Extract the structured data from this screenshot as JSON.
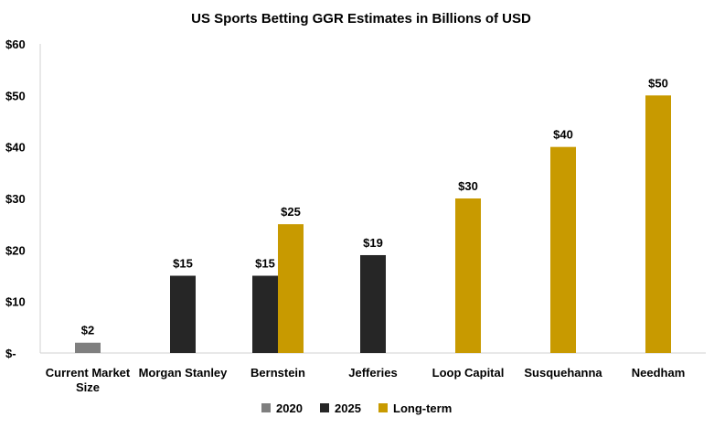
{
  "chart_data": {
    "type": "bar",
    "title": "US Sports Betting GGR Estimates in Billions of USD",
    "xlabel": "",
    "ylabel": "",
    "categories": [
      "Current Market Size",
      "Morgan Stanley",
      "Bernstein",
      "Jefferies",
      "Loop Capital",
      "Susquehanna",
      "Needham"
    ],
    "category_label_lines": [
      [
        "Current Market",
        "Size"
      ],
      [
        "Morgan Stanley"
      ],
      [
        "Bernstein"
      ],
      [
        "Jefferies"
      ],
      [
        "Loop Capital"
      ],
      [
        "Susquehanna"
      ],
      [
        "Needham"
      ]
    ],
    "series": [
      {
        "name": "2020",
        "color": "#7f7f7f",
        "values": [
          2,
          null,
          null,
          null,
          null,
          null,
          null
        ],
        "labels": [
          "$2",
          null,
          null,
          null,
          null,
          null,
          null
        ]
      },
      {
        "name": "2025",
        "color": "#262626",
        "values": [
          null,
          15,
          15,
          19,
          null,
          null,
          null
        ],
        "labels": [
          null,
          "$15",
          "$15",
          "$19",
          null,
          null,
          null
        ]
      },
      {
        "name": "Long-term",
        "color": "#c89a00",
        "values": [
          null,
          null,
          25,
          null,
          30,
          40,
          50
        ],
        "labels": [
          null,
          null,
          "$25",
          null,
          "$30",
          "$40",
          "$50"
        ]
      }
    ],
    "ylim": [
      0,
      60
    ],
    "yticks": [
      0,
      10,
      20,
      30,
      40,
      50,
      60
    ],
    "ytick_labels": [
      "$-",
      "$10",
      "$20",
      "$30",
      "$40",
      "$50",
      "$60"
    ],
    "grid": false,
    "legend_position": "bottom"
  }
}
